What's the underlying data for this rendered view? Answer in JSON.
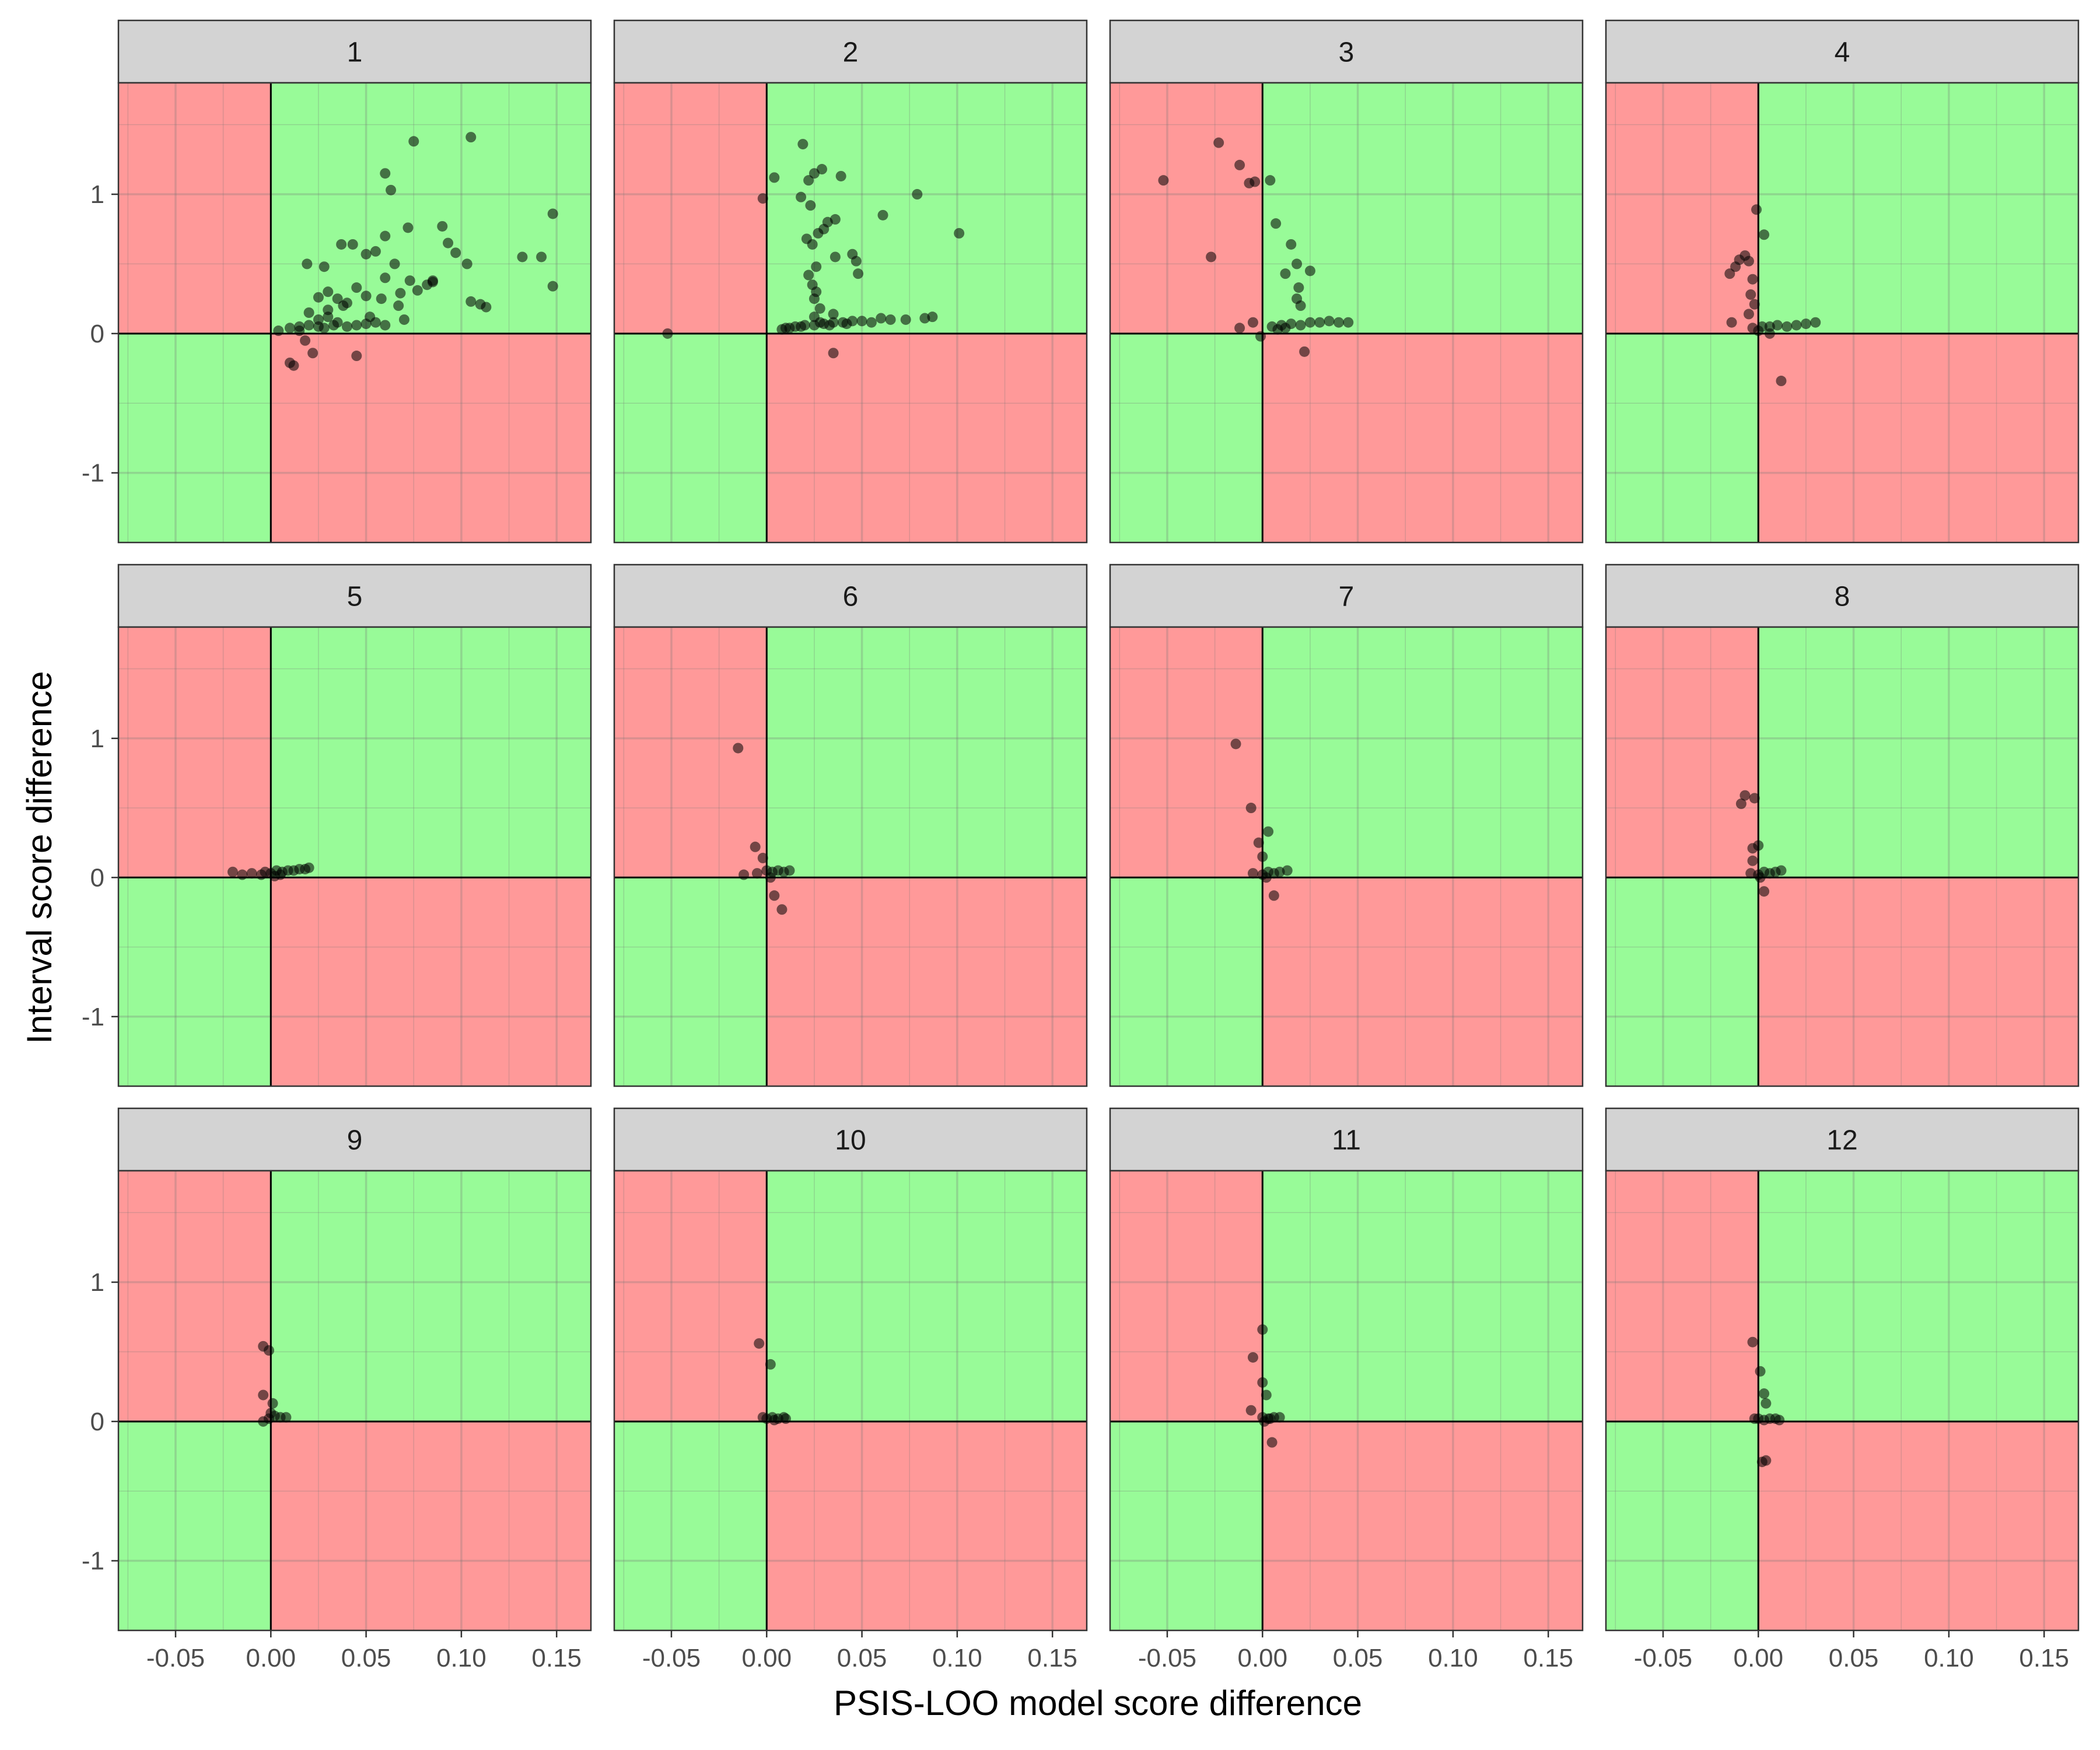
{
  "chart_data": {
    "type": "scatter",
    "facet_layout": "3 rows x 4 columns",
    "xlabel": "PSIS-LOO model score difference",
    "ylabel": "Interval score difference",
    "xlim": [
      -0.08,
      0.168
    ],
    "ylim": [
      -1.5,
      1.8
    ],
    "x_ticks": [
      -0.05,
      0.0,
      0.05,
      0.1,
      0.15
    ],
    "x_tick_labels": [
      "-0.05",
      "0.00",
      "0.05",
      "0.10",
      "0.15"
    ],
    "y_ticks": [
      -1,
      0,
      1
    ],
    "y_tick_labels": [
      "-1",
      "0",
      "1"
    ],
    "grid": true,
    "point_color": "#000000",
    "point_opacity": 0.55,
    "quadrant_colors": {
      "agree": "#98fb98",
      "disagree": "#ff9999"
    },
    "strip_color": "#d3d3d3",
    "panels": [
      {
        "label": "1",
        "points": [
          [
            0.105,
            1.41
          ],
          [
            0.075,
            1.38
          ],
          [
            0.06,
            1.15
          ],
          [
            0.063,
            1.03
          ],
          [
            0.148,
            0.86
          ],
          [
            0.132,
            0.55
          ],
          [
            0.142,
            0.55
          ],
          [
            0.148,
            0.34
          ],
          [
            0.09,
            0.77
          ],
          [
            0.093,
            0.65
          ],
          [
            0.097,
            0.58
          ],
          [
            0.103,
            0.5
          ],
          [
            0.072,
            0.76
          ],
          [
            0.06,
            0.7
          ],
          [
            0.055,
            0.59
          ],
          [
            0.05,
            0.57
          ],
          [
            0.043,
            0.64
          ],
          [
            0.037,
            0.64
          ],
          [
            0.065,
            0.5
          ],
          [
            0.073,
            0.38
          ],
          [
            0.085,
            0.37
          ],
          [
            0.077,
            0.31
          ],
          [
            0.068,
            0.29
          ],
          [
            0.06,
            0.4
          ],
          [
            0.045,
            0.33
          ],
          [
            0.03,
            0.3
          ],
          [
            0.025,
            0.26
          ],
          [
            0.019,
            0.5
          ],
          [
            0.028,
            0.48
          ],
          [
            0.035,
            0.25
          ],
          [
            0.04,
            0.22
          ],
          [
            0.05,
            0.27
          ],
          [
            0.058,
            0.25
          ],
          [
            0.067,
            0.2
          ],
          [
            0.07,
            0.1
          ],
          [
            0.105,
            0.23
          ],
          [
            0.11,
            0.21
          ],
          [
            0.113,
            0.19
          ],
          [
            0.02,
            0.15
          ],
          [
            0.025,
            0.1
          ],
          [
            0.03,
            0.12
          ],
          [
            0.035,
            0.08
          ],
          [
            0.038,
            0.2
          ],
          [
            0.045,
            0.06
          ],
          [
            0.05,
            0.07
          ],
          [
            0.055,
            0.08
          ],
          [
            0.06,
            0.06
          ],
          [
            0.01,
            0.04
          ],
          [
            0.015,
            0.05
          ],
          [
            0.02,
            0.06
          ],
          [
            0.025,
            0.05
          ],
          [
            0.028,
            0.04
          ],
          [
            0.033,
            0.06
          ],
          [
            0.04,
            0.05
          ],
          [
            0.004,
            0.02
          ],
          [
            0.012,
            -0.23
          ],
          [
            0.01,
            -0.21
          ],
          [
            0.022,
            -0.14
          ],
          [
            0.018,
            -0.05
          ],
          [
            0.045,
            -0.16
          ],
          [
            0.085,
            0.38
          ],
          [
            0.082,
            0.35
          ],
          [
            0.03,
            0.17
          ],
          [
            0.015,
            0.02
          ],
          [
            0.052,
            0.12
          ]
        ]
      },
      {
        "label": "2",
        "points": [
          [
            -0.052,
            0.0
          ],
          [
            -0.002,
            0.97
          ],
          [
            0.004,
            1.12
          ],
          [
            0.019,
            1.36
          ],
          [
            0.025,
            1.15
          ],
          [
            0.022,
            1.1
          ],
          [
            0.029,
            1.18
          ],
          [
            0.039,
            1.13
          ],
          [
            0.018,
            0.98
          ],
          [
            0.023,
            0.92
          ],
          [
            0.032,
            0.8
          ],
          [
            0.036,
            0.82
          ],
          [
            0.03,
            0.75
          ],
          [
            0.027,
            0.72
          ],
          [
            0.021,
            0.68
          ],
          [
            0.024,
            0.64
          ],
          [
            0.061,
            0.85
          ],
          [
            0.079,
            1.0
          ],
          [
            0.101,
            0.72
          ],
          [
            0.045,
            0.57
          ],
          [
            0.047,
            0.52
          ],
          [
            0.048,
            0.43
          ],
          [
            0.036,
            0.55
          ],
          [
            0.026,
            0.48
          ],
          [
            0.022,
            0.42
          ],
          [
            0.024,
            0.35
          ],
          [
            0.026,
            0.3
          ],
          [
            0.025,
            0.25
          ],
          [
            0.028,
            0.18
          ],
          [
            0.025,
            0.12
          ],
          [
            0.028,
            0.08
          ],
          [
            0.035,
            0.14
          ],
          [
            0.035,
            -0.14
          ],
          [
            0.06,
            0.11
          ],
          [
            0.065,
            0.1
          ],
          [
            0.073,
            0.1
          ],
          [
            0.083,
            0.11
          ],
          [
            0.087,
            0.12
          ],
          [
            0.01,
            0.04
          ],
          [
            0.015,
            0.05
          ],
          [
            0.02,
            0.06
          ],
          [
            0.025,
            0.06
          ],
          [
            0.03,
            0.07
          ],
          [
            0.035,
            0.08
          ],
          [
            0.04,
            0.08
          ],
          [
            0.045,
            0.09
          ],
          [
            0.05,
            0.09
          ],
          [
            0.055,
            0.08
          ],
          [
            0.008,
            0.03
          ],
          [
            0.012,
            0.04
          ],
          [
            0.018,
            0.05
          ],
          [
            0.033,
            0.06
          ],
          [
            0.042,
            0.07
          ]
        ]
      },
      {
        "label": "3",
        "points": [
          [
            -0.052,
            1.1
          ],
          [
            -0.023,
            1.37
          ],
          [
            -0.012,
            1.21
          ],
          [
            -0.007,
            1.08
          ],
          [
            -0.004,
            1.09
          ],
          [
            0.004,
            1.1
          ],
          [
            -0.027,
            0.55
          ],
          [
            0.007,
            0.79
          ],
          [
            0.015,
            0.64
          ],
          [
            0.018,
            0.5
          ],
          [
            0.025,
            0.45
          ],
          [
            0.012,
            0.43
          ],
          [
            0.019,
            0.33
          ],
          [
            0.018,
            0.25
          ],
          [
            0.02,
            0.2
          ],
          [
            -0.012,
            0.04
          ],
          [
            -0.005,
            0.08
          ],
          [
            -0.001,
            -0.02
          ],
          [
            0.005,
            0.05
          ],
          [
            0.01,
            0.06
          ],
          [
            0.015,
            0.07
          ],
          [
            0.02,
            0.06
          ],
          [
            0.025,
            0.08
          ],
          [
            0.03,
            0.08
          ],
          [
            0.035,
            0.09
          ],
          [
            0.04,
            0.08
          ],
          [
            0.045,
            0.08
          ],
          [
            0.022,
            -0.13
          ],
          [
            0.008,
            0.03
          ],
          [
            0.012,
            0.04
          ]
        ]
      },
      {
        "label": "4",
        "points": [
          [
            -0.001,
            0.89
          ],
          [
            0.003,
            0.71
          ],
          [
            -0.007,
            0.56
          ],
          [
            -0.01,
            0.53
          ],
          [
            -0.005,
            0.52
          ],
          [
            -0.012,
            0.48
          ],
          [
            -0.015,
            0.43
          ],
          [
            -0.003,
            0.39
          ],
          [
            -0.004,
            0.28
          ],
          [
            -0.002,
            0.21
          ],
          [
            -0.014,
            0.08
          ],
          [
            -0.005,
            0.14
          ],
          [
            -0.003,
            0.04
          ],
          [
            0.002,
            0.05
          ],
          [
            0.006,
            0.05
          ],
          [
            0.01,
            0.06
          ],
          [
            0.015,
            0.05
          ],
          [
            0.02,
            0.06
          ],
          [
            0.025,
            0.07
          ],
          [
            0.03,
            0.08
          ],
          [
            0.012,
            -0.34
          ],
          [
            0.006,
            0.0
          ],
          [
            0.0,
            0.02
          ]
        ]
      },
      {
        "label": "5",
        "points": [
          [
            -0.02,
            0.04
          ],
          [
            -0.015,
            0.02
          ],
          [
            -0.01,
            0.03
          ],
          [
            -0.005,
            0.02
          ],
          [
            -0.003,
            0.04
          ],
          [
            0.0,
            0.03
          ],
          [
            0.003,
            0.05
          ],
          [
            0.006,
            0.04
          ],
          [
            0.009,
            0.05
          ],
          [
            0.012,
            0.05
          ],
          [
            0.015,
            0.06
          ],
          [
            0.018,
            0.06
          ],
          [
            0.02,
            0.07
          ],
          [
            0.002,
            0.01
          ],
          [
            0.005,
            0.02
          ]
        ]
      },
      {
        "label": "6",
        "points": [
          [
            -0.015,
            0.93
          ],
          [
            -0.006,
            0.22
          ],
          [
            -0.002,
            0.14
          ],
          [
            -0.012,
            0.02
          ],
          [
            -0.005,
            0.03
          ],
          [
            0.0,
            0.05
          ],
          [
            0.003,
            0.04
          ],
          [
            0.006,
            0.05
          ],
          [
            0.009,
            0.04
          ],
          [
            0.012,
            0.05
          ],
          [
            0.004,
            -0.13
          ],
          [
            0.008,
            -0.23
          ],
          [
            0.002,
            0.0
          ]
        ]
      },
      {
        "label": "7",
        "points": [
          [
            -0.014,
            0.96
          ],
          [
            -0.006,
            0.5
          ],
          [
            0.003,
            0.33
          ],
          [
            -0.002,
            0.25
          ],
          [
            0.0,
            0.15
          ],
          [
            -0.005,
            0.03
          ],
          [
            0.0,
            0.02
          ],
          [
            0.003,
            0.04
          ],
          [
            0.006,
            0.03
          ],
          [
            0.009,
            0.04
          ],
          [
            0.013,
            0.05
          ],
          [
            0.006,
            -0.13
          ],
          [
            0.002,
            0.0
          ]
        ]
      },
      {
        "label": "8",
        "points": [
          [
            -0.007,
            0.59
          ],
          [
            -0.009,
            0.53
          ],
          [
            -0.002,
            0.57
          ],
          [
            -0.003,
            0.21
          ],
          [
            0.0,
            0.23
          ],
          [
            -0.003,
            0.12
          ],
          [
            -0.004,
            0.03
          ],
          [
            0.0,
            0.02
          ],
          [
            0.003,
            0.04
          ],
          [
            0.006,
            0.03
          ],
          [
            0.009,
            0.04
          ],
          [
            0.012,
            0.05
          ],
          [
            0.003,
            -0.1
          ],
          [
            0.001,
            0.0
          ]
        ]
      },
      {
        "label": "9",
        "points": [
          [
            -0.004,
            0.54
          ],
          [
            -0.001,
            0.51
          ],
          [
            -0.004,
            0.19
          ],
          [
            0.001,
            0.13
          ],
          [
            -0.004,
            0.0
          ],
          [
            -0.001,
            0.02
          ],
          [
            0.002,
            0.04
          ],
          [
            0.005,
            0.03
          ],
          [
            0.008,
            0.03
          ],
          [
            0.0,
            0.06
          ]
        ]
      },
      {
        "label": "10",
        "points": [
          [
            -0.004,
            0.56
          ],
          [
            0.002,
            0.41
          ],
          [
            -0.002,
            0.03
          ],
          [
            0.0,
            0.02
          ],
          [
            0.003,
            0.03
          ],
          [
            0.006,
            0.02
          ],
          [
            0.009,
            0.03
          ],
          [
            0.01,
            0.02
          ],
          [
            0.004,
            0.01
          ]
        ]
      },
      {
        "label": "11",
        "points": [
          [
            0.0,
            0.66
          ],
          [
            -0.005,
            0.46
          ],
          [
            0.0,
            0.28
          ],
          [
            0.002,
            0.19
          ],
          [
            -0.006,
            0.08
          ],
          [
            0.004,
            0.02
          ],
          [
            0.0,
            0.03
          ],
          [
            0.003,
            0.02
          ],
          [
            0.006,
            0.03
          ],
          [
            0.009,
            0.03
          ],
          [
            0.005,
            -0.15
          ],
          [
            0.001,
            0.0
          ]
        ]
      },
      {
        "label": "12",
        "points": [
          [
            -0.003,
            0.57
          ],
          [
            0.001,
            0.36
          ],
          [
            0.003,
            0.2
          ],
          [
            0.004,
            0.13
          ],
          [
            -0.002,
            0.02
          ],
          [
            0.0,
            0.02
          ],
          [
            0.003,
            0.01
          ],
          [
            0.006,
            0.02
          ],
          [
            0.009,
            0.02
          ],
          [
            0.011,
            0.01
          ],
          [
            0.004,
            -0.28
          ],
          [
            0.002,
            -0.29
          ]
        ]
      }
    ]
  }
}
